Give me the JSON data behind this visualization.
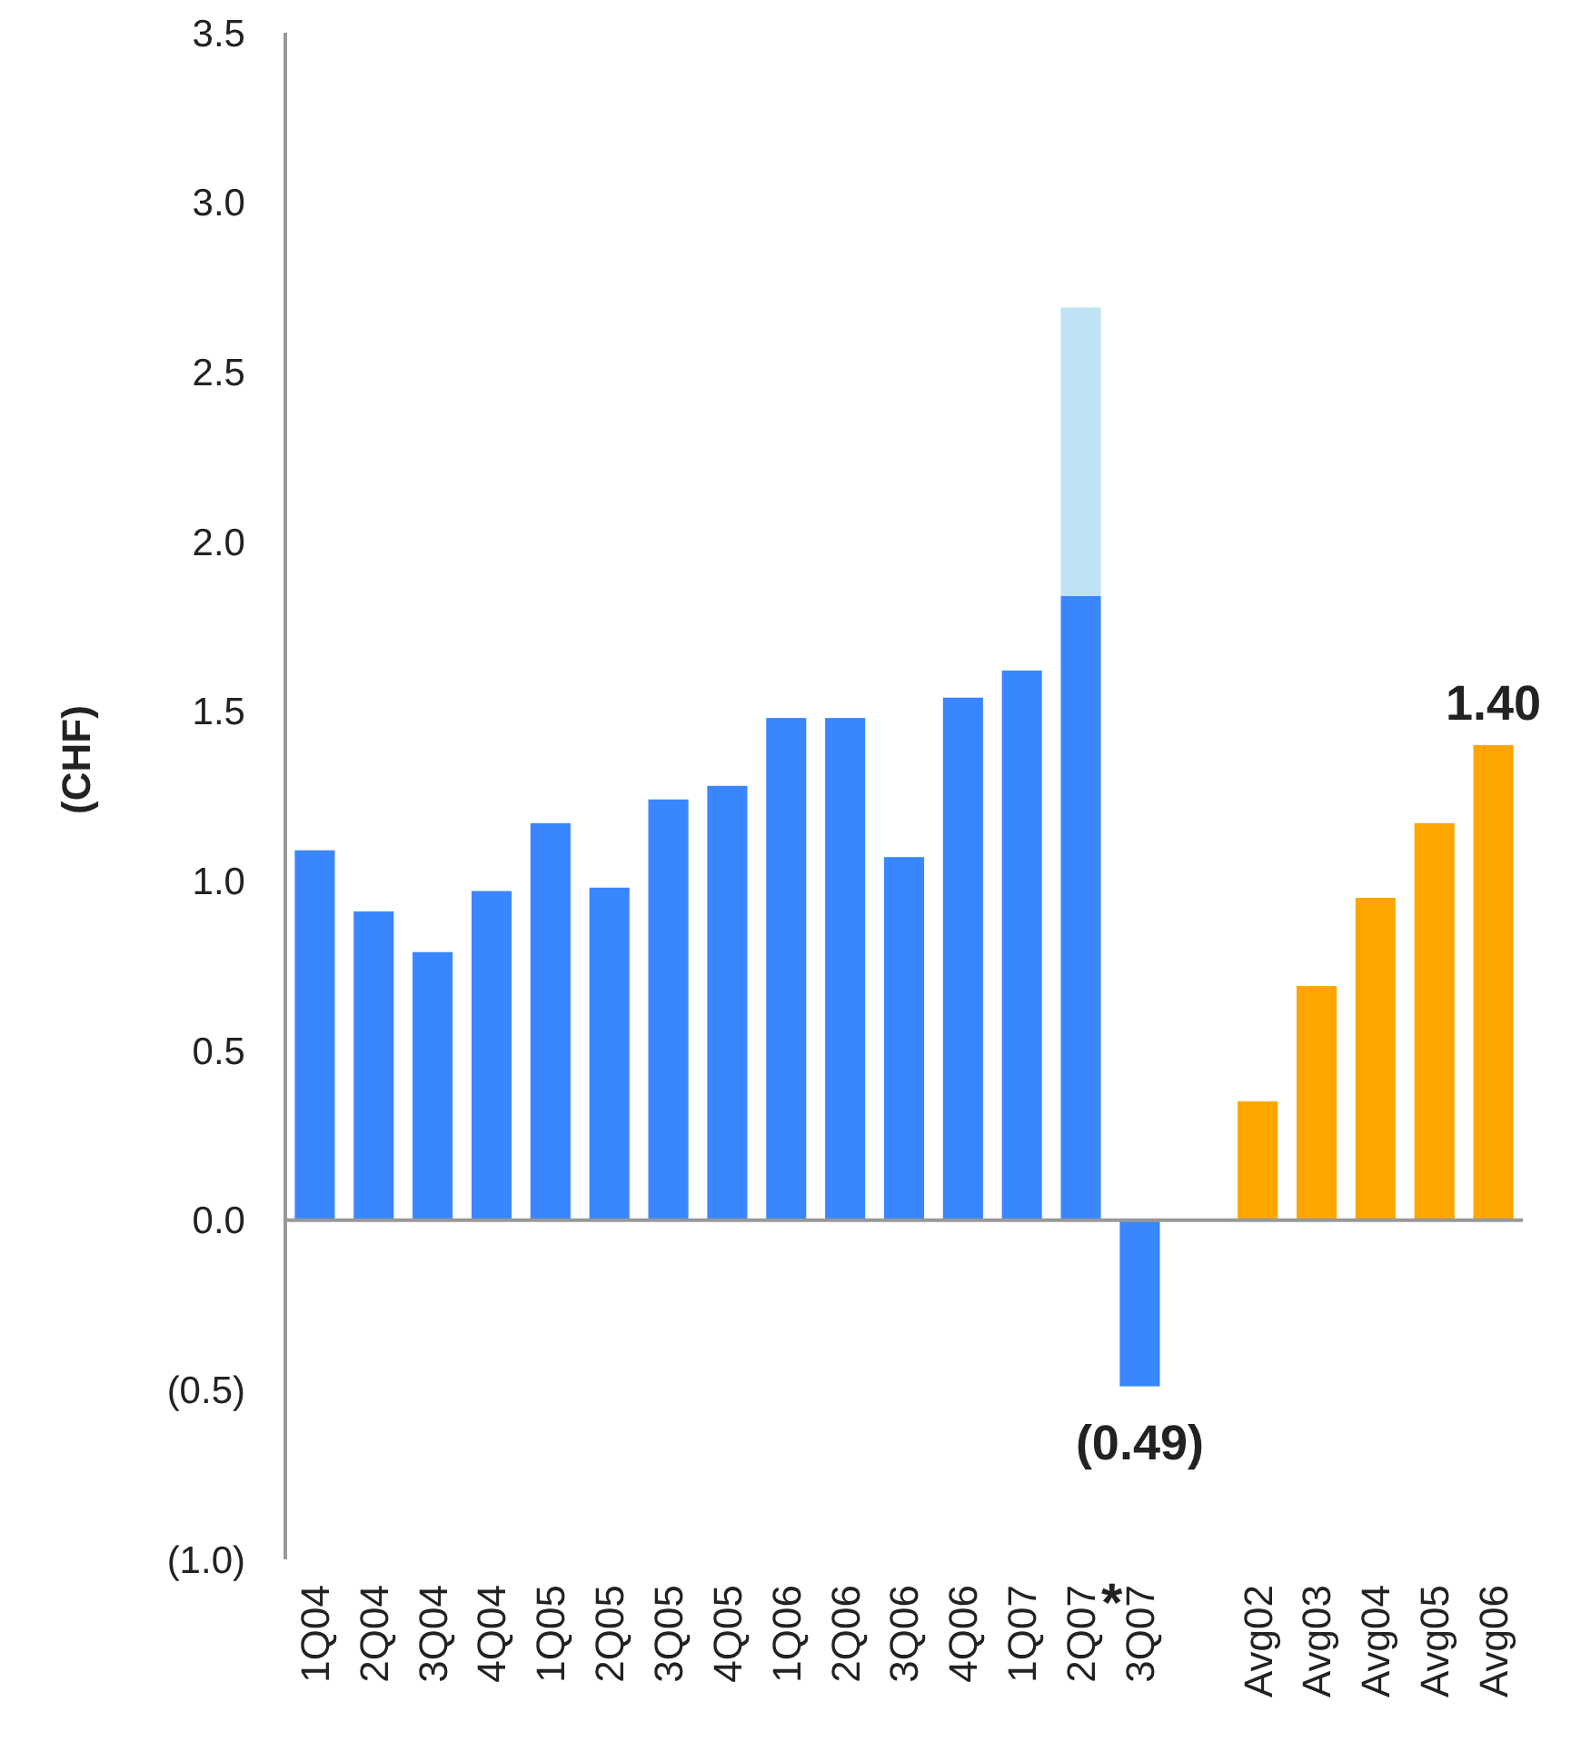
{
  "chart_data": {
    "type": "bar",
    "ylabel": "(CHF)",
    "stacked": true,
    "categories": [
      "1Q04",
      "2Q04",
      "3Q04",
      "4Q04",
      "1Q05",
      "2Q05",
      "3Q05",
      "4Q05",
      "1Q06",
      "2Q06",
      "3Q06",
      "4Q06",
      "1Q07",
      "2Q07",
      "3Q07",
      null,
      "Avg02",
      "Avg03",
      "Avg04",
      "Avg05",
      "Avg06"
    ],
    "series": [
      {
        "color": "#3a86ff",
        "values": [
          1.09,
          0.91,
          0.79,
          0.97,
          1.17,
          0.98,
          1.24,
          1.28,
          1.48,
          1.48,
          1.07,
          1.54,
          1.62,
          1.84,
          -0.49,
          null,
          null,
          null,
          null,
          null,
          null
        ],
        "value_labels": [
          null,
          null,
          null,
          null,
          null,
          null,
          null,
          null,
          null,
          null,
          null,
          null,
          null,
          null,
          "(0.49)",
          null,
          null,
          null,
          null,
          null,
          null
        ]
      },
      {
        "color": "#bde3f5",
        "values": [
          null,
          null,
          null,
          null,
          null,
          null,
          null,
          null,
          null,
          null,
          null,
          null,
          null,
          0.85,
          null,
          null,
          null,
          null,
          null,
          null,
          null
        ]
      },
      {
        "color": "#ffa500",
        "values": [
          null,
          null,
          null,
          null,
          null,
          null,
          null,
          null,
          null,
          null,
          null,
          null,
          null,
          null,
          null,
          null,
          0.35,
          0.69,
          0.95,
          1.17,
          1.4
        ],
        "value_labels": [
          null,
          null,
          null,
          null,
          null,
          null,
          null,
          null,
          null,
          null,
          null,
          null,
          null,
          null,
          null,
          null,
          null,
          null,
          null,
          null,
          "1.40"
        ]
      }
    ],
    "annotations": [
      "*"
    ],
    "ylim": [
      -1,
      3.5
    ],
    "yticks": [
      {
        "value": -1,
        "label": "(1.0)"
      },
      {
        "value": -0.5,
        "label": "(0.5)"
      },
      {
        "value": 0,
        "label": "0.0"
      },
      {
        "value": 0.5,
        "label": "0.5"
      },
      {
        "value": 1,
        "label": "1.0"
      },
      {
        "value": 1.5,
        "label": "1.5"
      },
      {
        "value": 2,
        "label": "2.0"
      },
      {
        "value": 2.5,
        "label": "2.5"
      },
      {
        "value": 3,
        "label": "3.0"
      },
      {
        "value": 3.5,
        "label": "3.5"
      }
    ]
  }
}
